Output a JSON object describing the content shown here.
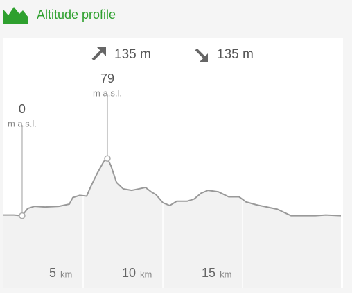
{
  "chart_data": {
    "type": "area",
    "title": "Altitude profile",
    "stats": [
      {
        "value": 135,
        "label": "135 m"
      },
      {
        "value": 135,
        "label": "135 m"
      }
    ],
    "x": [
      0,
      0.65,
      1.17,
      1.52,
      1.96,
      2.61,
      3.48,
      4.13,
      4.35,
      4.78,
      5.22,
      5.43,
      5.87,
      6.3,
      6.52,
      6.74,
      7.09,
      7.52,
      8.04,
      8.48,
      8.91,
      9.26,
      9.57,
      10,
      10.43,
      10.87,
      11.52,
      11.96,
      12.39,
      12.83,
      13.48,
      14.13,
      14.78,
      15.22,
      15.87,
      16.52,
      17.17,
      18.04,
      18.91,
      19.57,
      20.22,
      21.17
    ],
    "values": [
      1,
      1,
      0,
      10,
      13,
      12,
      13,
      16,
      25,
      28,
      27,
      38,
      58,
      75,
      79,
      69,
      46,
      37,
      35,
      37,
      39,
      33,
      29,
      18,
      14,
      20,
      20,
      23,
      31,
      35,
      33,
      26,
      26,
      19,
      15,
      12,
      9,
      0,
      0,
      0,
      1,
      0
    ],
    "color": "#999999",
    "fill": "#f2f2f2",
    "markers": [
      {
        "x": 1.17,
        "value": 0,
        "unit": "m a.s.l."
      },
      {
        "x": 6.52,
        "value": 79,
        "unit": "m a.s.l."
      }
    ],
    "xlim": [
      0,
      21.17
    ],
    "ylim": [
      -100,
      245
    ],
    "xticks": [
      5,
      10,
      15
    ],
    "x_unit": "km",
    "grid": true
  }
}
